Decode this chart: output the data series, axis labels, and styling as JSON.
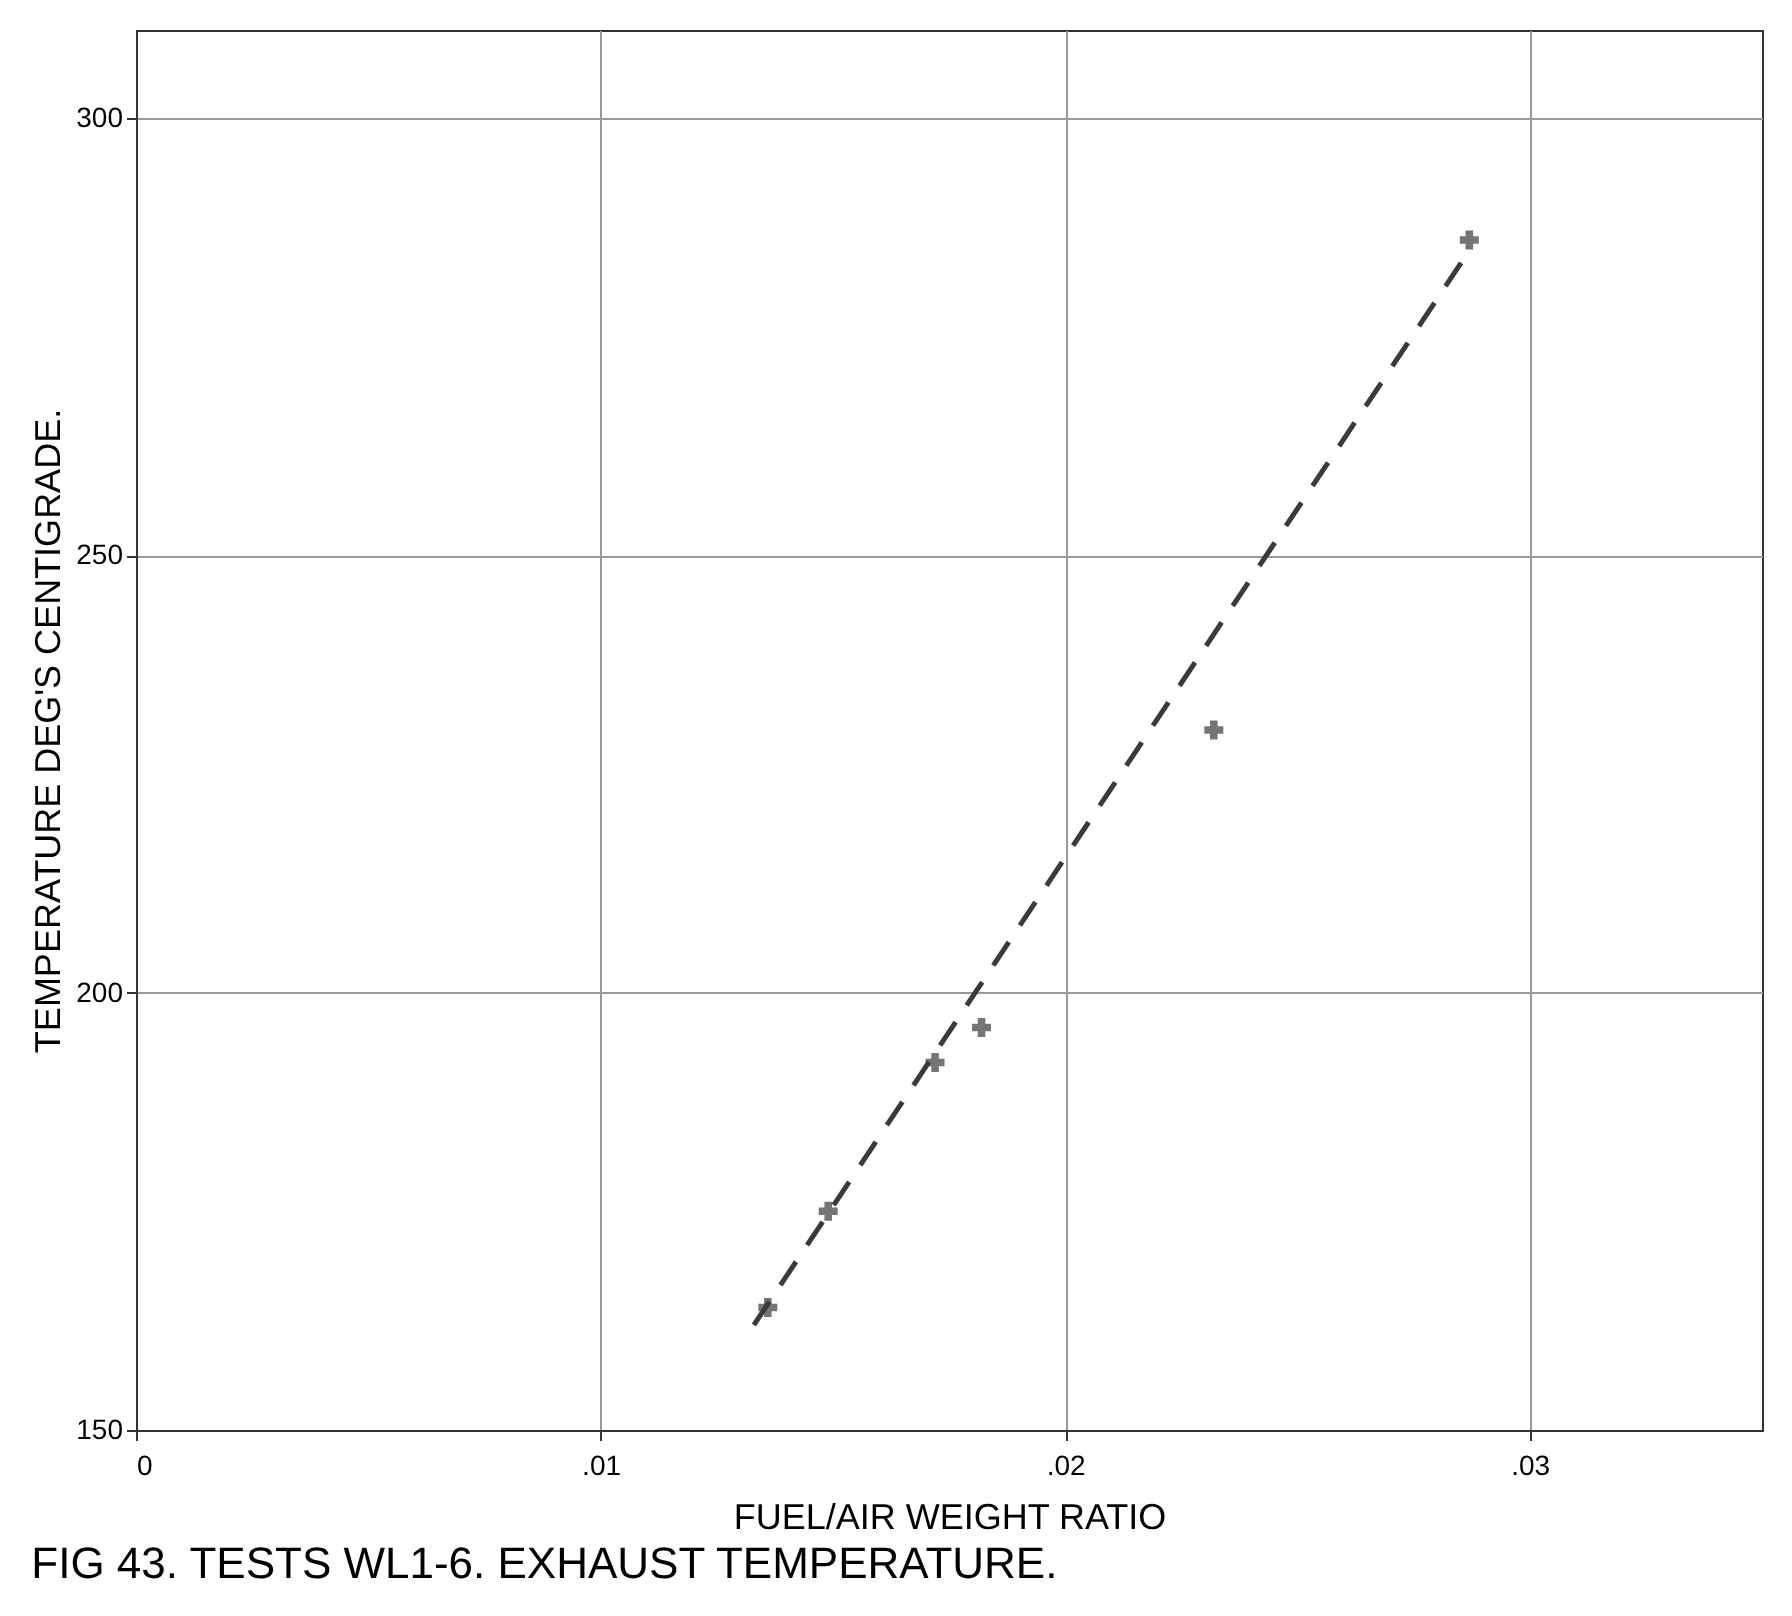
{
  "chart_data": {
    "type": "scatter",
    "title": "FIG 43. TESTS WL1-6. EXHAUST TEMPERATURE.",
    "xlabel": "FUEL/AIR WEIGHT RATIO",
    "ylabel": "TEMPERATURE   DEG'S CENTIGRADE.",
    "xlim": [
      0,
      0.035
    ],
    "ylim": [
      150,
      310
    ],
    "xticks": [
      0,
      {
        "value": 0.01,
        "label": ".01"
      },
      {
        "value": 0.02,
        "label": ".02"
      },
      {
        "value": 0.03,
        "label": ".03"
      }
    ],
    "yticks": [
      150,
      200,
      250,
      300
    ],
    "grid": true,
    "marker": "cross",
    "series": [
      {
        "color": "#3a3a3a",
        "x": [
          0.0136,
          0.0149,
          0.0172,
          0.0182,
          0.0232,
          0.0287
        ],
        "values": [
          164,
          175,
          192,
          196,
          230,
          286
        ]
      },
      {
        "type": "line",
        "color": "#3a3a3a",
        "line_style": "dashed",
        "marker": "none",
        "x": [
          0.0133,
          0.0286
        ],
        "values": [
          162,
          284
        ]
      }
    ]
  }
}
